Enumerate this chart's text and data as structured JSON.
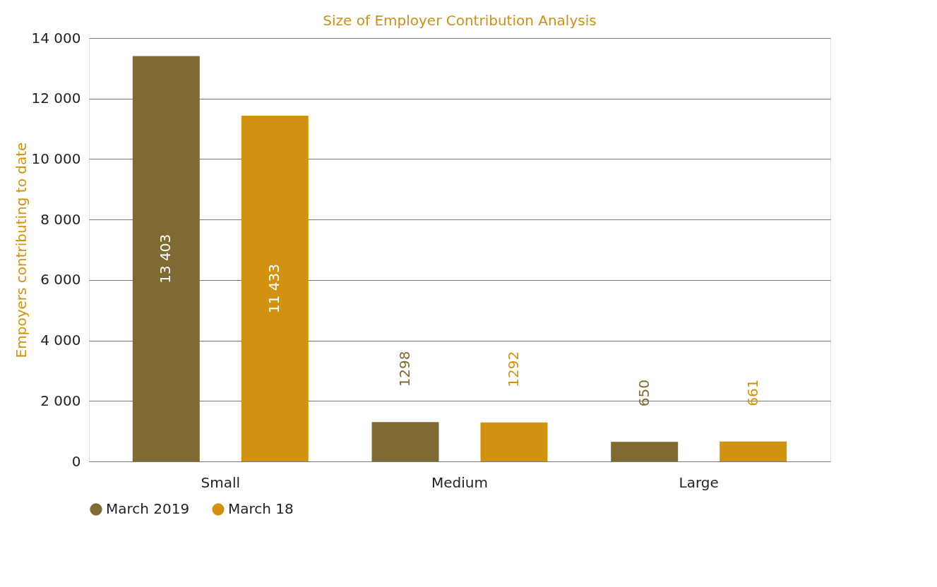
{
  "chart_data": {
    "type": "bar",
    "title": "Size of Employer Contribution Analysis",
    "ylabel": "Empoyers contributing to date",
    "categories": [
      "Small",
      "Medium",
      "Large"
    ],
    "series": [
      {
        "name": "March 2019",
        "color": "#806a34",
        "values": [
          13403,
          1298,
          650
        ],
        "value_labels": [
          "13 403",
          "1298",
          "650"
        ]
      },
      {
        "name": "March 18",
        "color": "#d29211",
        "values": [
          11433,
          1292,
          661
        ],
        "value_labels": [
          "11 433",
          "1292",
          "661"
        ]
      }
    ],
    "ylim": [
      0,
      14000
    ],
    "yticks": [
      {
        "value": 0,
        "label": "0"
      },
      {
        "value": 2000,
        "label": "2 000"
      },
      {
        "value": 4000,
        "label": "4 000"
      },
      {
        "value": 6000,
        "label": "6 000"
      },
      {
        "value": 8000,
        "label": "8 000"
      },
      {
        "value": 10000,
        "label": "10 000"
      },
      {
        "value": 12000,
        "label": "12 000"
      },
      {
        "value": 14000,
        "label": "14 000"
      }
    ],
    "grid": "y",
    "legend": "bottom"
  }
}
